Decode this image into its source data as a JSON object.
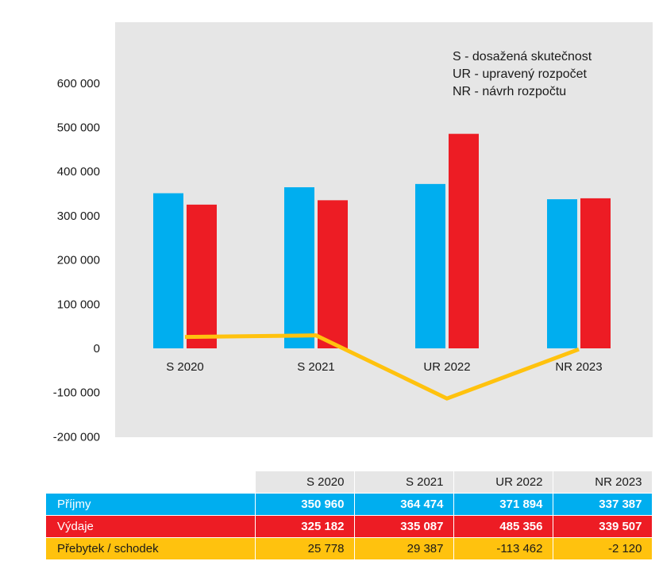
{
  "legend_notes": [
    "S -  dosažená skutečnost",
    "UR - upravený rozpočet",
    "NR - návrh rozpočtu"
  ],
  "colors": {
    "prijmy": "#00aeef",
    "vydaje": "#ed1c24",
    "bilance": "#ffc20e",
    "plot_bg": "#e6e6e6"
  },
  "chart_data": {
    "type": "bar",
    "categories": [
      "S 2020",
      "S 2021",
      "UR 2022",
      "NR 2023"
    ],
    "series": [
      {
        "name": "Příjmy",
        "type": "bar",
        "values": [
          350960,
          364474,
          371894,
          337387
        ]
      },
      {
        "name": "Výdaje",
        "type": "bar",
        "values": [
          325182,
          335087,
          485356,
          339507
        ]
      },
      {
        "name": "Přebytek / schodek",
        "type": "line",
        "values": [
          25778,
          29387,
          -113462,
          -2120
        ]
      }
    ],
    "ylim": [
      -200000,
      700000
    ],
    "yticks": [
      600000,
      500000,
      400000,
      300000,
      200000,
      100000,
      0,
      -100000,
      -200000
    ],
    "ytick_labels": [
      "600 000",
      "500 000",
      "400 000",
      "300 000",
      "200 000",
      "100 000",
      "0",
      "-100 000",
      "-200 000"
    ],
    "legend_position": "top-right",
    "grid": false
  },
  "table": {
    "headers": [
      "S 2020",
      "S 2021",
      "UR 2022",
      "NR 2023"
    ],
    "rows": [
      {
        "label": "Příjmy",
        "values": [
          "350 960",
          "364 474",
          "371 894",
          "337 387"
        ]
      },
      {
        "label": "Výdaje",
        "values": [
          "325 182",
          "335 087",
          "485 356",
          "339 507"
        ]
      },
      {
        "label": "Přebytek / schodek",
        "values": [
          "25 778",
          "29 387",
          "-113 462",
          "-2 120"
        ]
      }
    ]
  }
}
